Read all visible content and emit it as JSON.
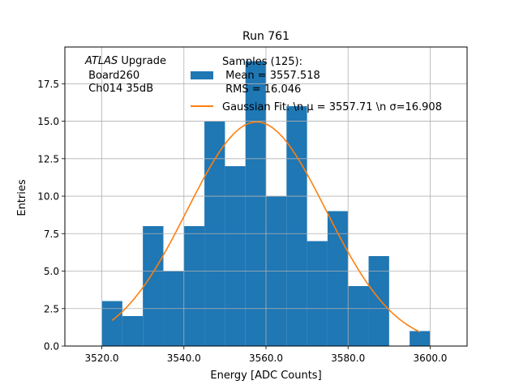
{
  "chart_data": {
    "type": "bar",
    "title": "Run 761",
    "xlabel": "Energy [ADC Counts]",
    "ylabel": "Entries",
    "xlim": [
      3511.0,
      3609.0
    ],
    "ylim": [
      0,
      19.95
    ],
    "grid": true,
    "x_ticks": [
      3520,
      3540,
      3560,
      3580,
      3600
    ],
    "x_tick_labels": [
      "3520.0",
      "3540.0",
      "3560.0",
      "3580.0",
      "3600.0"
    ],
    "y_ticks": [
      0,
      2.5,
      5,
      7.5,
      10,
      12.5,
      15,
      17.5
    ],
    "y_tick_labels": [
      "0.0",
      "2.5",
      "5.0",
      "7.5",
      "10.0",
      "12.5",
      "15.0",
      "17.5"
    ],
    "bin_edges": [
      3515,
      3520,
      3525,
      3530,
      3535,
      3540,
      3545,
      3550,
      3555,
      3560,
      3565,
      3570,
      3575,
      3580,
      3585,
      3590,
      3595,
      3600,
      3605
    ],
    "values": [
      0,
      3,
      2,
      8,
      5,
      8,
      15,
      12,
      19,
      10,
      16,
      7,
      9,
      4,
      6,
      0,
      1,
      0
    ],
    "series": [
      {
        "name": "Samples (125):",
        "legend_lines": [
          "Samples (125):",
          " Mean = 3557.518",
          " RMS = 16.046"
        ],
        "kind": "histogram",
        "color": "#1f77b4"
      },
      {
        "name": "Gaussian Fit: \\n μ = 3557.71 \\n σ=16.908",
        "legend_text": "Gaussian Fit: \\n μ = 3557.71 \\n σ=16.908",
        "kind": "line",
        "color": "#ff7f0e",
        "mu": 3557.71,
        "sigma": 16.908,
        "amplitude": 14.95,
        "x_range": [
          3522.5,
          3597.5
        ]
      }
    ],
    "legend_location": "top-center",
    "annotation": {
      "line1_italic": "ATLAS",
      "line1_rest": " Upgrade",
      "line2": " Board260",
      "line3": " Ch014 35dB"
    }
  }
}
